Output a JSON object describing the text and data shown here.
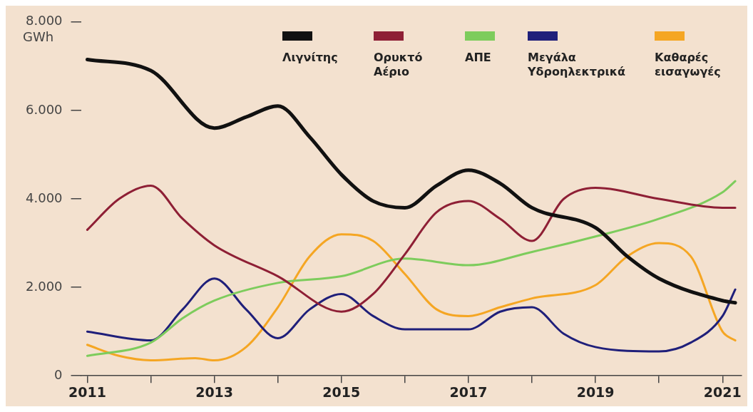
{
  "chart_data": {
    "type": "line",
    "ylabel": "GWh",
    "xlim": [
      2010.9,
      2021.3
    ],
    "xticks": [
      2011,
      {
        "value": 2012,
        "label": null
      },
      2013,
      {
        "value": 2014,
        "label": null
      },
      2015,
      {
        "value": 2016,
        "label": null
      },
      2017,
      {
        "value": 2018,
        "label": null
      },
      2019,
      {
        "value": 2020,
        "label": null
      },
      2021
    ],
    "ylim": [
      0,
      8000
    ],
    "yticks": [
      {
        "value": 0,
        "label": "0"
      },
      {
        "value": 2000,
        "label": "2.000"
      },
      {
        "value": 4000,
        "label": "4.000"
      },
      {
        "value": 6000,
        "label": "6.000"
      },
      {
        "value": 8000,
        "label": "8.000"
      }
    ],
    "grid": false,
    "legend": "top right",
    "marker": "none",
    "line_style": "solid",
    "series": [
      {
        "name": "Λιγνίτης",
        "color": "#111111",
        "x": [
          2011,
          2012,
          2013,
          2013.5,
          2014,
          2014.5,
          2015,
          2015.5,
          2016,
          2016.5,
          2017,
          2017.5,
          2018,
          2019,
          2019.5,
          2020,
          2021,
          2021.2
        ],
        "values": [
          7150,
          6900,
          5600,
          5850,
          6100,
          5400,
          4550,
          3950,
          3800,
          4300,
          4650,
          4350,
          3800,
          3350,
          2700,
          2200,
          1700,
          1650
        ]
      },
      {
        "name": "Ορυκτό Αέριο",
        "color": "#8e1f35",
        "x": [
          2011,
          2011.5,
          2012,
          2012.5,
          2013,
          2014,
          2015,
          2015.5,
          2016,
          2016.5,
          2017,
          2017.5,
          2018,
          2018.5,
          2019,
          2020,
          2021,
          2021.2
        ],
        "values": [
          3300,
          4000,
          4300,
          3550,
          2950,
          2250,
          1450,
          1850,
          2750,
          3700,
          3950,
          3550,
          3050,
          4000,
          4250,
          4000,
          3800,
          3800
        ]
      },
      {
        "name": "ΑΠΕ",
        "color": "#7dcc5c",
        "x": [
          2011,
          2012,
          2012.5,
          2013,
          2014,
          2015,
          2016,
          2017,
          2018,
          2019,
          2020,
          2021,
          2021.2
        ],
        "values": [
          450,
          750,
          1300,
          1700,
          2100,
          2250,
          2650,
          2500,
          2800,
          3150,
          3550,
          4150,
          4400
        ]
      },
      {
        "name": "Μεγάλα Υδροηλεκτρικά",
        "color": "#1f1f7a",
        "x": [
          2011,
          2012,
          2012.5,
          2013,
          2013.5,
          2014,
          2014.5,
          2015,
          2015.5,
          2016,
          2017,
          2017.5,
          2018,
          2018.5,
          2019,
          2020,
          2020.5,
          2021,
          2021.2
        ],
        "values": [
          1000,
          800,
          1500,
          2200,
          1500,
          850,
          1500,
          1850,
          1350,
          1050,
          1050,
          1450,
          1550,
          950,
          650,
          550,
          750,
          1350,
          1950
        ]
      },
      {
        "name": "Καθαρές εισαγωγές",
        "color": "#f5a623",
        "x": [
          2011,
          2011.5,
          2012,
          2012.7,
          2013,
          2013.5,
          2014,
          2014.5,
          2015,
          2015.5,
          2016,
          2016.5,
          2017,
          2017.5,
          2018,
          2019,
          2019.5,
          2020,
          2020.5,
          2021,
          2021.2
        ],
        "values": [
          700,
          450,
          350,
          400,
          350,
          650,
          1550,
          2700,
          3200,
          3050,
          2300,
          1500,
          1350,
          1550,
          1750,
          2050,
          2700,
          3000,
          2700,
          1000,
          800
        ]
      }
    ]
  }
}
